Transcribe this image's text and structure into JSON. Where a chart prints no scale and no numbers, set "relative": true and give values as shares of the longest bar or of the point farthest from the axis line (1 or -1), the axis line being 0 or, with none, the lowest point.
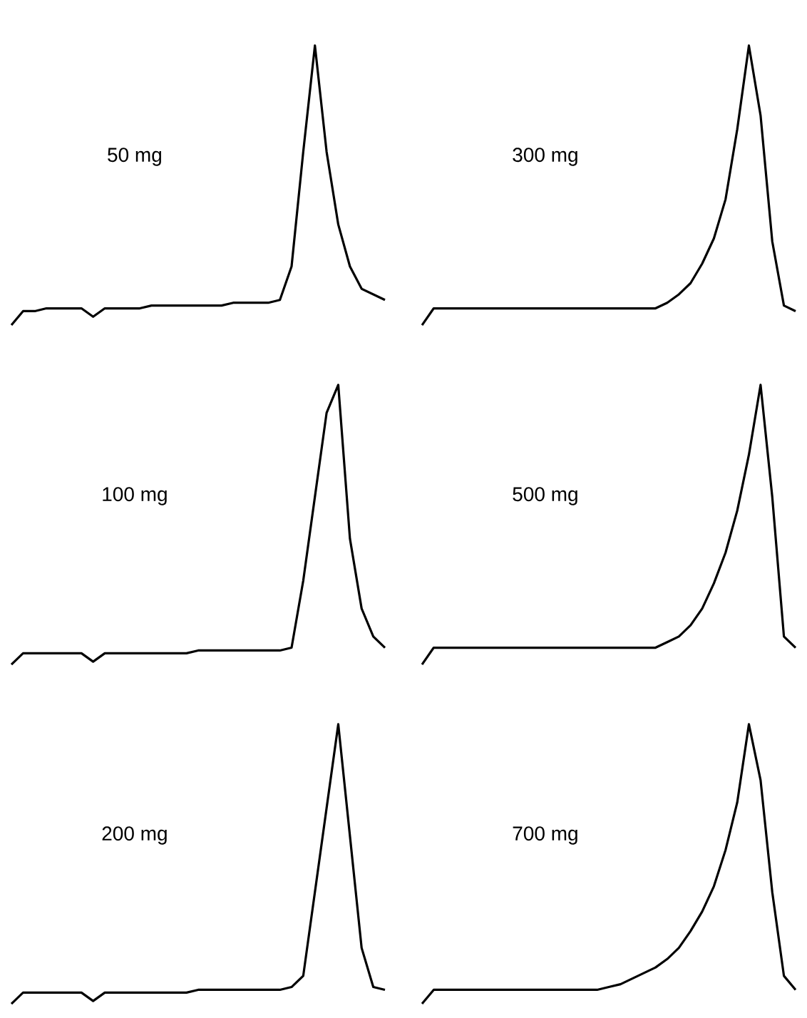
{
  "chart_data": [
    {
      "type": "line",
      "title": "50 mg",
      "relative": true,
      "color": "#000000",
      "categories": [
        null,
        null,
        null,
        null,
        null,
        null,
        null,
        null,
        null,
        null,
        null,
        null,
        null,
        null,
        null,
        null,
        null,
        null,
        null,
        null,
        null,
        null,
        null,
        null,
        null,
        null,
        null,
        null,
        null,
        null,
        null,
        null,
        null
      ],
      "values": [
        0,
        0.05,
        0.05,
        0.06,
        0.06,
        0.06,
        0.06,
        0.03,
        0.06,
        0.06,
        0.06,
        0.06,
        0.07,
        0.07,
        0.07,
        0.07,
        0.07,
        0.07,
        0.07,
        0.08,
        0.08,
        0.08,
        0.08,
        0.09,
        0.21,
        0.62,
        1,
        0.62,
        0.36,
        0.21,
        0.13,
        0.11,
        0.09
      ]
    },
    {
      "type": "line",
      "title": "300 mg",
      "relative": true,
      "color": "#000000",
      "categories": [
        null,
        null,
        null,
        null,
        null,
        null,
        null,
        null,
        null,
        null,
        null,
        null,
        null,
        null,
        null,
        null,
        null,
        null,
        null,
        null,
        null,
        null,
        null,
        null,
        null,
        null,
        null,
        null,
        null,
        null,
        null,
        null,
        null
      ],
      "values": [
        0,
        0.06,
        0.06,
        0.06,
        0.06,
        0.06,
        0.06,
        0.06,
        0.06,
        0.06,
        0.06,
        0.06,
        0.06,
        0.06,
        0.06,
        0.06,
        0.06,
        0.06,
        0.06,
        0.06,
        0.06,
        0.08,
        0.11,
        0.15,
        0.22,
        0.31,
        0.45,
        0.7,
        1,
        0.75,
        0.3,
        0.07,
        0.05
      ]
    },
    {
      "type": "line",
      "title": "100 mg",
      "relative": true,
      "color": "#000000",
      "categories": [
        null,
        null,
        null,
        null,
        null,
        null,
        null,
        null,
        null,
        null,
        null,
        null,
        null,
        null,
        null,
        null,
        null,
        null,
        null,
        null,
        null,
        null,
        null,
        null,
        null,
        null,
        null,
        null,
        null,
        null,
        null,
        null,
        null
      ],
      "values": [
        0,
        0.04,
        0.04,
        0.04,
        0.04,
        0.04,
        0.04,
        0.01,
        0.04,
        0.04,
        0.04,
        0.04,
        0.04,
        0.04,
        0.04,
        0.04,
        0.05,
        0.05,
        0.05,
        0.05,
        0.05,
        0.05,
        0.05,
        0.05,
        0.06,
        0.3,
        0.6,
        0.9,
        1,
        0.45,
        0.2,
        0.1,
        0.06
      ]
    },
    {
      "type": "line",
      "title": "500 mg",
      "relative": true,
      "color": "#000000",
      "categories": [
        null,
        null,
        null,
        null,
        null,
        null,
        null,
        null,
        null,
        null,
        null,
        null,
        null,
        null,
        null,
        null,
        null,
        null,
        null,
        null,
        null,
        null,
        null,
        null,
        null,
        null,
        null,
        null,
        null,
        null,
        null,
        null,
        null
      ],
      "values": [
        0,
        0.06,
        0.06,
        0.06,
        0.06,
        0.06,
        0.06,
        0.06,
        0.06,
        0.06,
        0.06,
        0.06,
        0.06,
        0.06,
        0.06,
        0.06,
        0.06,
        0.06,
        0.06,
        0.06,
        0.06,
        0.08,
        0.1,
        0.14,
        0.2,
        0.29,
        0.4,
        0.55,
        0.75,
        1,
        0.6,
        0.1,
        0.06
      ]
    },
    {
      "type": "line",
      "title": "200 mg",
      "relative": true,
      "color": "#000000",
      "categories": [
        null,
        null,
        null,
        null,
        null,
        null,
        null,
        null,
        null,
        null,
        null,
        null,
        null,
        null,
        null,
        null,
        null,
        null,
        null,
        null,
        null,
        null,
        null,
        null,
        null,
        null,
        null,
        null,
        null,
        null,
        null,
        null,
        null
      ],
      "values": [
        0,
        0.04,
        0.04,
        0.04,
        0.04,
        0.04,
        0.04,
        0.01,
        0.04,
        0.04,
        0.04,
        0.04,
        0.04,
        0.04,
        0.04,
        0.04,
        0.05,
        0.05,
        0.05,
        0.05,
        0.05,
        0.05,
        0.05,
        0.05,
        0.06,
        0.1,
        0.4,
        0.7,
        1,
        0.6,
        0.2,
        0.06,
        0.05
      ]
    },
    {
      "type": "line",
      "title": "700 mg",
      "relative": true,
      "color": "#000000",
      "categories": [
        null,
        null,
        null,
        null,
        null,
        null,
        null,
        null,
        null,
        null,
        null,
        null,
        null,
        null,
        null,
        null,
        null,
        null,
        null,
        null,
        null,
        null,
        null,
        null,
        null,
        null,
        null,
        null,
        null,
        null,
        null,
        null,
        null
      ],
      "values": [
        0,
        0.05,
        0.05,
        0.05,
        0.05,
        0.05,
        0.05,
        0.05,
        0.05,
        0.05,
        0.05,
        0.05,
        0.05,
        0.05,
        0.05,
        0.05,
        0.06,
        0.07,
        0.09,
        0.11,
        0.13,
        0.16,
        0.2,
        0.26,
        0.33,
        0.42,
        0.55,
        0.72,
        1,
        0.8,
        0.4,
        0.1,
        0.05
      ]
    }
  ]
}
